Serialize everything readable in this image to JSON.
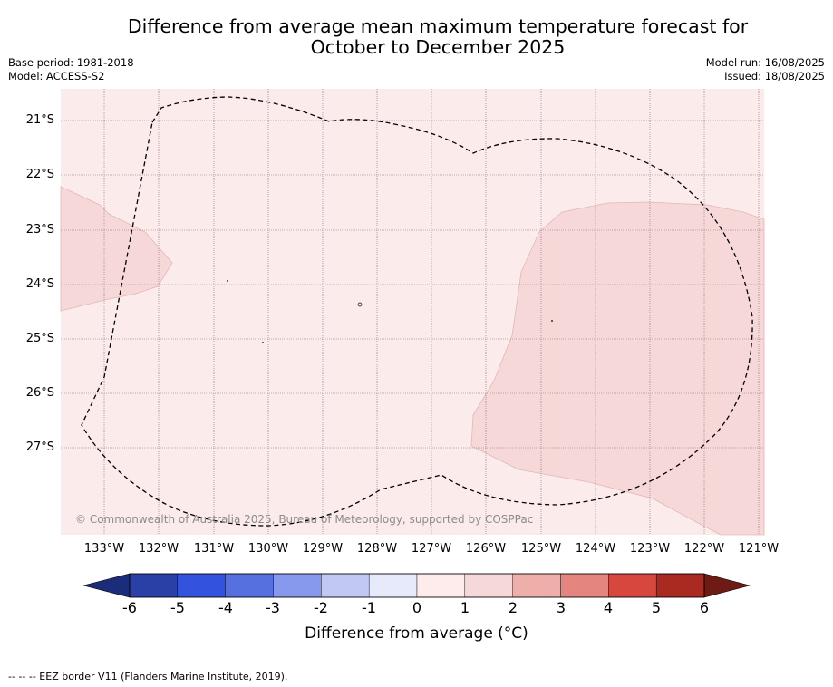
{
  "title": {
    "line1": "Difference from average mean maximum temperature forecast for",
    "line2": "October to December 2025"
  },
  "meta_left": {
    "base_period": "Base period: 1981-2018",
    "model": "Model: ACCESS-S2"
  },
  "meta_right": {
    "model_run": "Model run: 16/08/2025",
    "issued": "Issued: 18/08/2025"
  },
  "lat_labels": [
    "21°S",
    "22°S",
    "23°S",
    "24°S",
    "25°S",
    "26°S",
    "27°S"
  ],
  "lon_labels": [
    "133°W",
    "132°W",
    "131°W",
    "130°W",
    "129°W",
    "128°W",
    "127°W",
    "126°W",
    "125°W",
    "124°W",
    "123°W",
    "122°W",
    "121°W"
  ],
  "copyright": "© Commonwealth of Australia 2025, Bureau of Meteorology, supported by COSPPac",
  "colorbar": {
    "ticks": [
      "-6",
      "-5",
      "-4",
      "-3",
      "-2",
      "-1",
      "0",
      "1",
      "2",
      "3",
      "4",
      "5",
      "6"
    ],
    "colors": [
      "#2a40a6",
      "#3353de",
      "#5670e0",
      "#8799ec",
      "#c1c9f3",
      "#e7eafb",
      "#fdeceb",
      "#f6d8d8",
      "#eeaeaa",
      "#e5857f",
      "#d7473e",
      "#aa2921"
    ],
    "low_color": "#1b2d7a",
    "high_color": "#6e1b16",
    "label": "Difference from average (°C)"
  },
  "map": {
    "background_color": "#fbebeb",
    "anomaly_patch_color": "#f6d8d8"
  },
  "footer": "-- -- -- EEZ border V11 (Flanders Marine Institute, 2019)."
}
